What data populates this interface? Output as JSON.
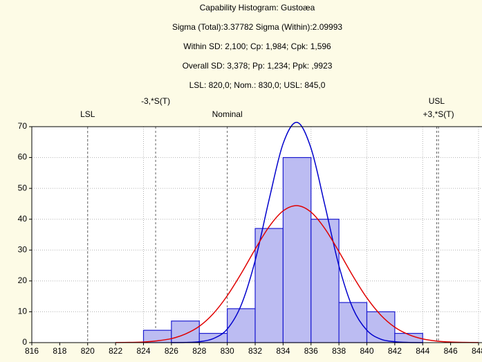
{
  "chart_data": {
    "type": "histogram",
    "title": "Capability Histogram: Gustoæa",
    "subtitles": [
      "Sigma (Total):3.37782 Sigma (Within):2.09993",
      "Within SD: 2,100; Cp: 1,984; Cpk: 1,596",
      "Overall SD: 3,378; Pp: 1,234; Ppk: ,9923",
      "LSL: 820,0; Nom.: 830,0; USL: 845,0"
    ],
    "bins": [
      824,
      826,
      828,
      830,
      832,
      834,
      836,
      838,
      840,
      842,
      844
    ],
    "counts": [
      4,
      7,
      3,
      11,
      37,
      60,
      40,
      13,
      10,
      3
    ],
    "color": "#bcbcf2",
    "edge_color": "#1c1cd0",
    "curves": [
      {
        "color": "#0000cc",
        "x": [
          826,
          827,
          828,
          829,
          830,
          831,
          832,
          833,
          834,
          835,
          836,
          837,
          838,
          839,
          840,
          841,
          842,
          843,
          844
        ],
        "values": [
          0,
          0.05,
          0.3,
          1.3,
          4.4,
          12.2,
          26.6,
          46.4,
          64.5,
          71.4,
          63.0,
          44.4,
          24.9,
          11.1,
          4.0,
          1.1,
          0.3,
          0.05,
          0
        ]
      },
      {
        "color": "#e00000",
        "x": [
          822,
          823,
          824,
          825,
          826,
          827,
          828,
          829,
          830,
          831,
          832,
          833,
          834,
          835,
          836,
          837,
          838,
          839,
          840,
          841,
          842,
          843,
          844,
          845,
          846,
          847,
          848
        ],
        "values": [
          0.03,
          0.08,
          0.2,
          0.6,
          1.3,
          2.8,
          5.3,
          9.4,
          15.2,
          22.4,
          30.3,
          37.6,
          42.7,
          44.4,
          42.3,
          36.9,
          29.5,
          21.6,
          14.5,
          8.9,
          5.0,
          2.6,
          1.2,
          0.5,
          0.2,
          0.08,
          0.03
        ]
      }
    ],
    "spec_lines": [
      {
        "value": 820,
        "label": "LSL"
      },
      {
        "value": 824.87,
        "label": "-3,*S(T)"
      },
      {
        "value": 830,
        "label": "Nominal"
      },
      {
        "value": 845,
        "label": "USL"
      },
      {
        "value": 845.13,
        "label": "+3,*S(T)"
      }
    ],
    "xlim": [
      816,
      848
    ],
    "xticks": [
      816,
      818,
      820,
      822,
      824,
      826,
      828,
      830,
      832,
      834,
      836,
      838,
      840,
      842,
      844,
      846,
      848
    ],
    "ylim": [
      0,
      70
    ],
    "yticks": [
      0,
      10,
      20,
      30,
      40,
      50,
      60,
      70
    ],
    "grid": true
  }
}
